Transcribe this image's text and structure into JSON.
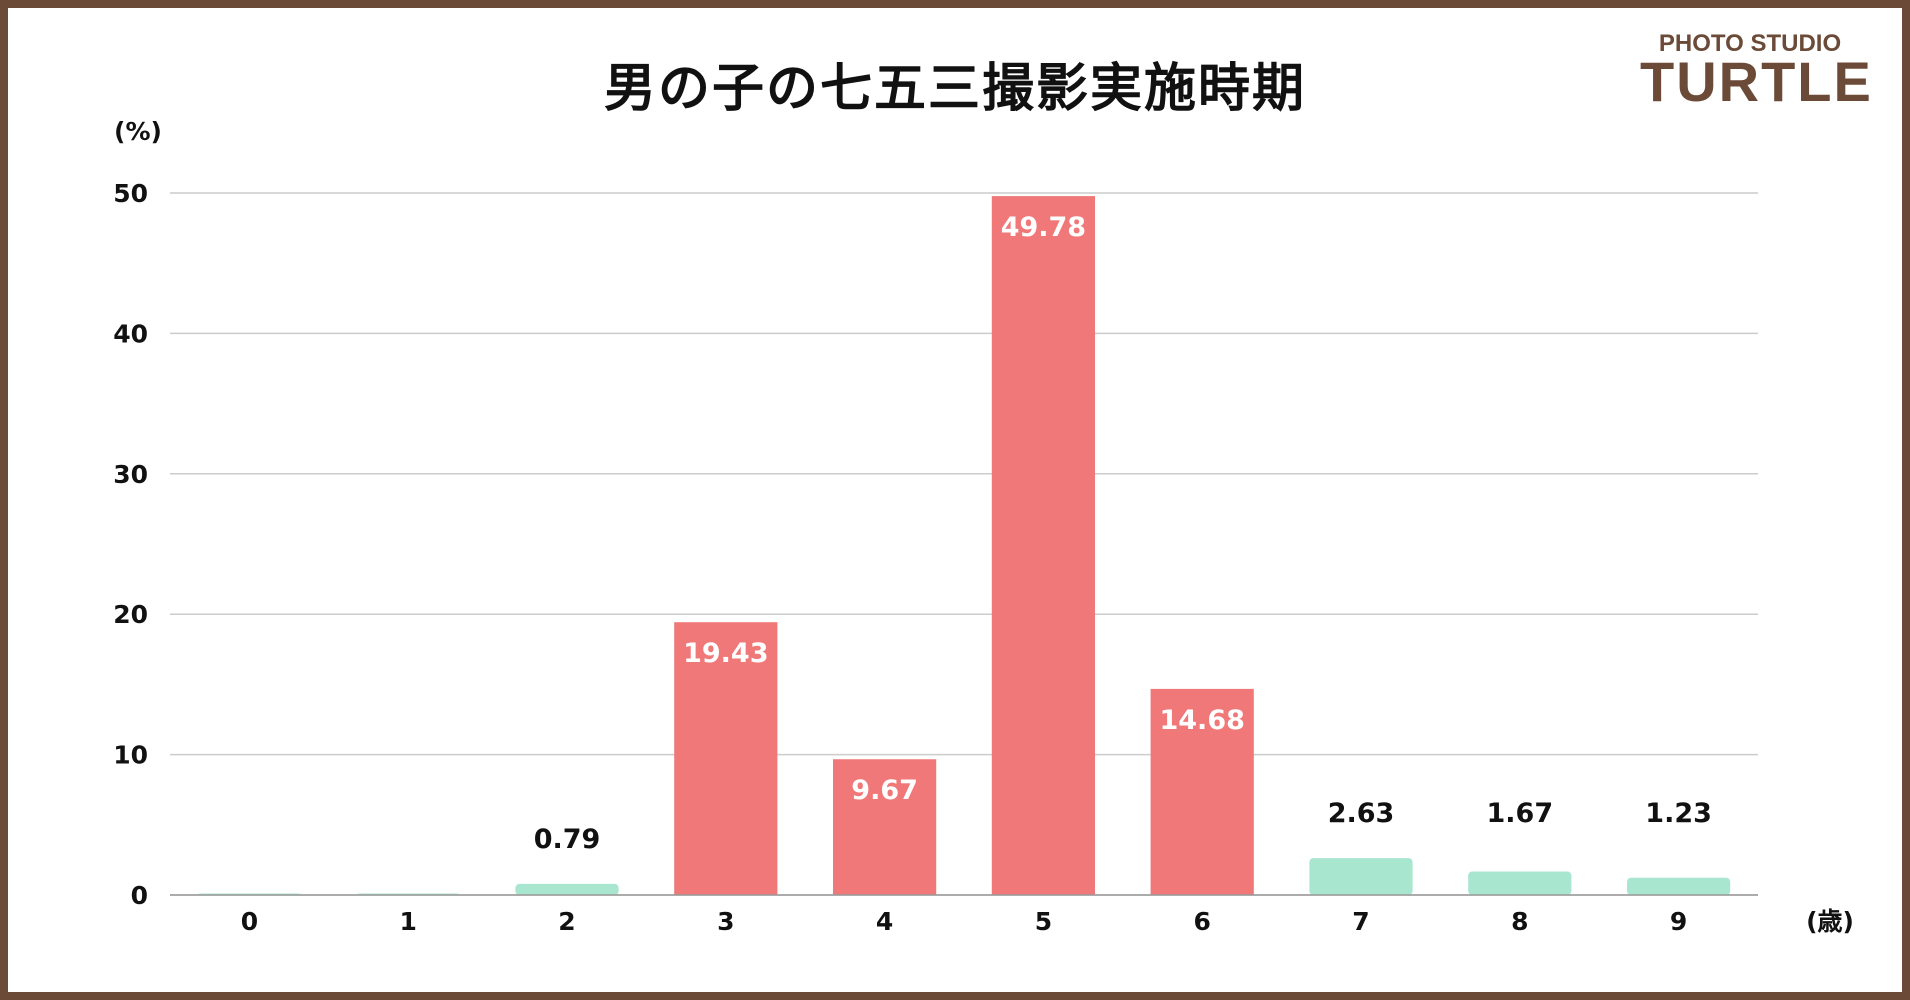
{
  "chart_data": {
    "type": "bar",
    "title": "男の子の七五三撮影実施時期",
    "y_unit_label": "(%)",
    "x_unit_label": "(歳)",
    "categories": [
      "0",
      "1",
      "2",
      "3",
      "4",
      "5",
      "6",
      "7",
      "8",
      "9"
    ],
    "values": [
      0,
      0,
      0.79,
      19.43,
      9.67,
      49.78,
      14.68,
      2.63,
      1.67,
      1.23
    ],
    "data_labels": [
      "",
      "",
      "0.79",
      "19.43",
      "9.67",
      "49.78",
      "14.68",
      "2.63",
      "1.67",
      "1.23"
    ],
    "highlight": [
      false,
      false,
      false,
      true,
      true,
      true,
      true,
      false,
      false,
      false
    ],
    "ylim": [
      0,
      50
    ],
    "yticks": [
      "0",
      "10",
      "20",
      "30",
      "40",
      "50"
    ],
    "grid": true,
    "colors": {
      "highlight": "#f07878",
      "normal": "#a8e6d0",
      "frame": "#6b4a38",
      "grid": "#cccccc"
    }
  },
  "logo": {
    "top": "PHOTO STUDIO",
    "main": "TURTLE"
  }
}
